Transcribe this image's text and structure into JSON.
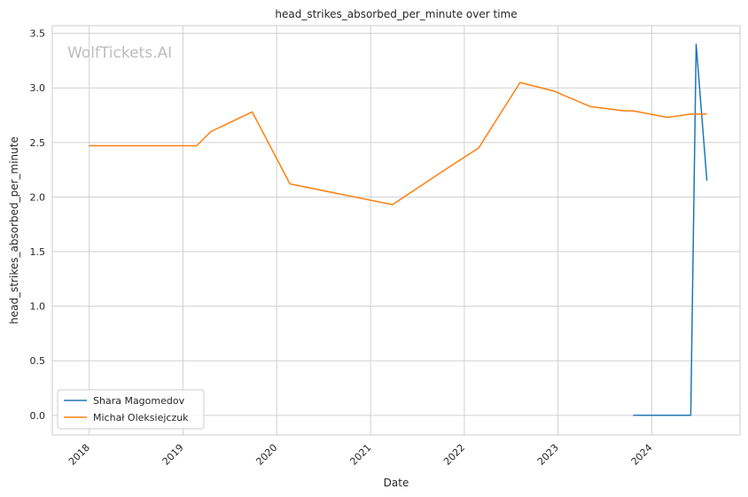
{
  "chart_data": {
    "type": "line",
    "title": "head_strikes_absorbed_per_minute over time",
    "xlabel": "Date",
    "ylabel": "head_strikes_absorbed_per_minute",
    "watermark": "WolfTickets.AI",
    "x_ticks": [
      "2018",
      "2019",
      "2020",
      "2021",
      "2022",
      "2023",
      "2024"
    ],
    "y_ticks": [
      "0.0",
      "0.5",
      "1.0",
      "1.5",
      "2.0",
      "2.5",
      "3.0",
      "3.5"
    ],
    "xlim": [
      "2017-08-10",
      "2024-12-10"
    ],
    "ylim": [
      -0.18,
      3.57
    ],
    "grid": true,
    "legend_position": "lower-left",
    "series": [
      {
        "name": "Shara Magomedov",
        "color": "#1f77b4",
        "points": [
          {
            "x": "2023-10-21",
            "y": 0.0
          },
          {
            "x": "2024-06-01",
            "y": 0.0
          },
          {
            "x": "2024-06-22",
            "y": 3.4
          },
          {
            "x": "2024-08-03",
            "y": 2.15
          }
        ]
      },
      {
        "name": "Michał Oleksiejczuk",
        "color": "#ff7f0e",
        "points": [
          {
            "x": "2017-12-30",
            "y": 2.47
          },
          {
            "x": "2019-02-23",
            "y": 2.47
          },
          {
            "x": "2019-04-20",
            "y": 2.6
          },
          {
            "x": "2019-09-28",
            "y": 2.78
          },
          {
            "x": "2020-02-22",
            "y": 2.12
          },
          {
            "x": "2021-03-27",
            "y": 1.93
          },
          {
            "x": "2021-10-30",
            "y": 2.27
          },
          {
            "x": "2022-02-26",
            "y": 2.45
          },
          {
            "x": "2022-08-06",
            "y": 3.05
          },
          {
            "x": "2022-12-17",
            "y": 2.97
          },
          {
            "x": "2023-05-06",
            "y": 2.83
          },
          {
            "x": "2023-09-16",
            "y": 2.79
          },
          {
            "x": "2023-10-21",
            "y": 2.79
          },
          {
            "x": "2024-03-02",
            "y": 2.73
          },
          {
            "x": "2024-06-01",
            "y": 2.76
          },
          {
            "x": "2024-08-03",
            "y": 2.76
          }
        ]
      }
    ]
  }
}
